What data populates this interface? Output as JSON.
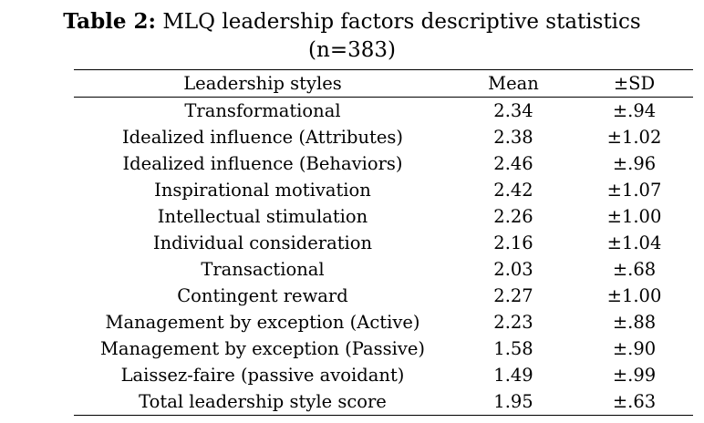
{
  "caption": {
    "label": "Table 2:",
    "title_line1": "MLQ leadership factors descriptive statistics",
    "title_line2": "(n=383)"
  },
  "table": {
    "headers": [
      "Leadership styles",
      "Mean",
      "±SD"
    ],
    "rows": [
      [
        "Transformational",
        "2.34",
        "±.94"
      ],
      [
        "Idealized influence (Attributes)",
        "2.38",
        "±1.02"
      ],
      [
        "Idealized influence (Behaviors)",
        "2.46",
        "±.96"
      ],
      [
        "Inspirational motivation",
        "2.42",
        "±1.07"
      ],
      [
        "Intellectual stimulation",
        "2.26",
        "±1.00"
      ],
      [
        "Individual consideration",
        "2.16",
        "±1.04"
      ],
      [
        "Transactional",
        "2.03",
        "±.68"
      ],
      [
        "Contingent reward",
        "2.27",
        "±1.00"
      ],
      [
        "Management by exception (Active)",
        "2.23",
        "±.88"
      ],
      [
        "Management by exception (Passive)",
        "1.58",
        "±.90"
      ],
      [
        "Laissez-faire (passive avoidant)",
        "1.49",
        "±.99"
      ],
      [
        "Total leadership style score",
        "1.95",
        "±.63"
      ]
    ]
  }
}
